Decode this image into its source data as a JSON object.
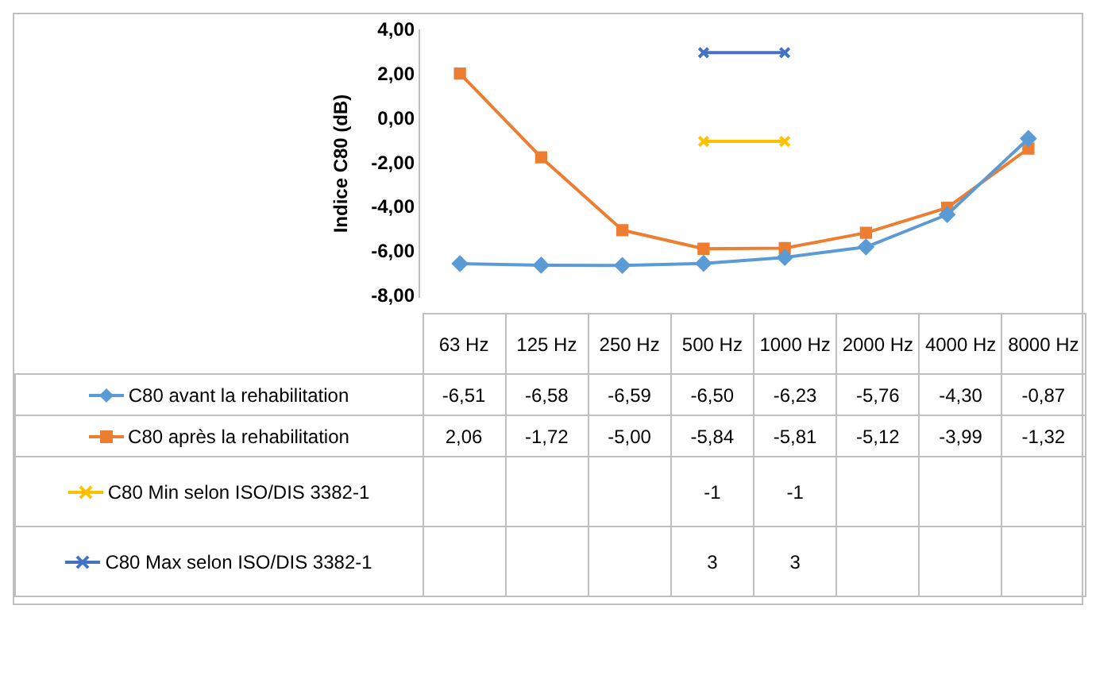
{
  "chart_data": {
    "type": "line",
    "ylabel": "Indice C80 (dB)",
    "categories": [
      "63 Hz",
      "125 Hz",
      "250 Hz",
      "500 Hz",
      "1000 Hz",
      "2000 Hz",
      "4000 Hz",
      "8000 Hz"
    ],
    "series": [
      {
        "name": "C80 avant la rehabilitation",
        "color": "#5b9bd5",
        "marker": "diamond",
        "values": [
          -6.51,
          -6.58,
          -6.59,
          -6.5,
          -6.23,
          -5.76,
          -4.3,
          -0.87
        ],
        "value_labels": [
          "-6,51",
          "-6,58",
          "-6,59",
          "-6,50",
          "-6,23",
          "-5,76",
          "-4,30",
          "-0,87"
        ]
      },
      {
        "name": "C80 après la rehabilitation",
        "color": "#ed7d31",
        "marker": "square",
        "values": [
          2.06,
          -1.72,
          -5.0,
          -5.84,
          -5.81,
          -5.12,
          -3.99,
          -1.32
        ],
        "value_labels": [
          "2,06",
          "-1,72",
          "-5,00",
          "-5,84",
          "-5,81",
          "-5,12",
          "-3,99",
          "-1,32"
        ]
      },
      {
        "name": "C80 Min  selon ISO/DIS 3382-1",
        "color": "#ffc000",
        "marker": "cross",
        "values": [
          null,
          null,
          null,
          -1,
          -1,
          null,
          null,
          null
        ],
        "value_labels": [
          null,
          null,
          null,
          "-1",
          "-1",
          null,
          null,
          null
        ]
      },
      {
        "name": "C80 Max  selon ISO/DIS 3382-1",
        "color": "#4472c4",
        "marker": "cross",
        "values": [
          null,
          null,
          null,
          3,
          3,
          null,
          null,
          null
        ],
        "value_labels": [
          null,
          null,
          null,
          "3",
          "3",
          null,
          null,
          null
        ]
      }
    ],
    "ylim": [
      -8,
      4
    ],
    "yticks": [
      {
        "value": 4,
        "label": "4,00"
      },
      {
        "value": 2,
        "label": "2,00"
      },
      {
        "value": 0,
        "label": "0,00"
      },
      {
        "value": -2,
        "label": "-2,00"
      },
      {
        "value": -4,
        "label": "-4,00"
      },
      {
        "value": -6,
        "label": "-6,00"
      },
      {
        "value": -8,
        "label": "-8,00"
      }
    ],
    "legend": "left",
    "grid": false
  }
}
